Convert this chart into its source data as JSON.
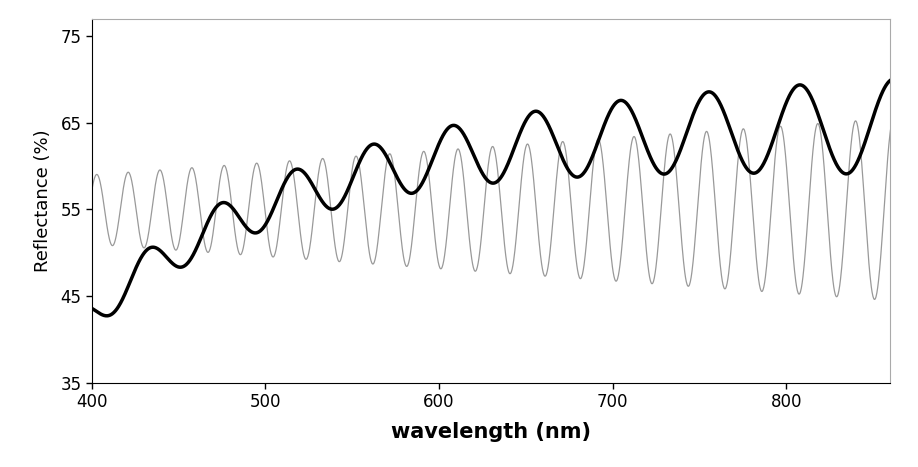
{
  "title": "",
  "xlabel": "wavelength (nm)",
  "ylabel": "Reflectance (%)",
  "xlim": [
    400,
    860
  ],
  "ylim": [
    35,
    77
  ],
  "yticks": [
    35,
    45,
    55,
    65,
    75
  ],
  "xticks": [
    400,
    500,
    600,
    700,
    800
  ],
  "background_color": "#ffffff",
  "thin_color": "#999999",
  "thick_color": "#000000",
  "thin_linewidth": 0.9,
  "thick_linewidth": 2.5,
  "xlabel_fontsize": 15,
  "ylabel_fontsize": 13,
  "tick_fontsize": 12
}
